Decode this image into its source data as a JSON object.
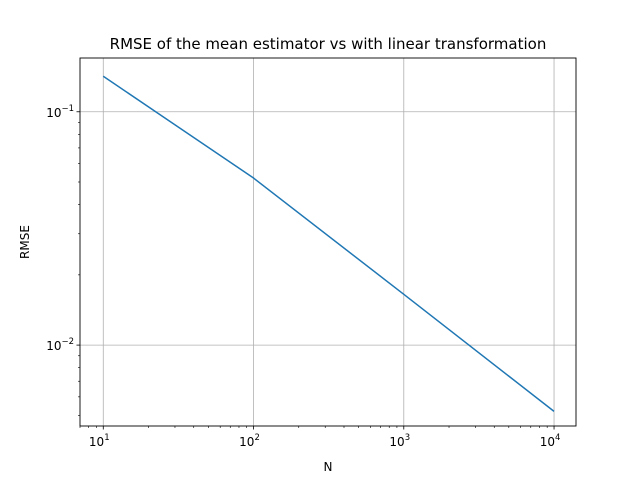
{
  "chart_data": {
    "type": "line",
    "title": "RMSE of the mean estimator vs with linear transformation",
    "xlabel": "N",
    "ylabel": "RMSE",
    "xscale": "log",
    "yscale": "log",
    "xlim": [
      7,
      14000
    ],
    "ylim": [
      0.0045,
      0.17
    ],
    "grid": true,
    "x_ticks": [
      {
        "value": 10,
        "base": "10",
        "exp": "1"
      },
      {
        "value": 100,
        "base": "10",
        "exp": "2"
      },
      {
        "value": 1000,
        "base": "10",
        "exp": "3"
      },
      {
        "value": 10000,
        "base": "10",
        "exp": "4"
      }
    ],
    "y_ticks": [
      {
        "value": 0.01,
        "base": "10",
        "exp": "−2"
      },
      {
        "value": 0.1,
        "base": "10",
        "exp": "−1"
      }
    ],
    "series": [
      {
        "color": "#1f77b4",
        "x": [
          10,
          100,
          1000,
          10000
        ],
        "y": [
          0.142,
          0.052,
          0.0165,
          0.0052
        ]
      }
    ]
  }
}
